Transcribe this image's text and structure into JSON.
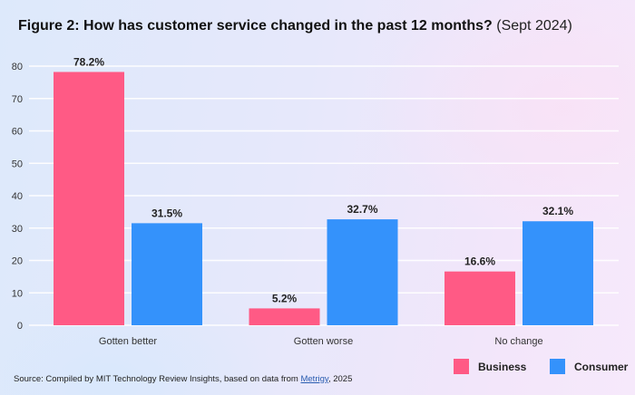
{
  "title": {
    "main": "Figure 2: How has customer service changed in the past 12 months?",
    "sub": "(Sept 2024)"
  },
  "colors": {
    "business": "#ff5a85",
    "consumer": "#3492fb"
  },
  "legend": [
    {
      "name": "Business",
      "color": "#ff5a85"
    },
    {
      "name": "Consumer",
      "color": "#3492fb"
    }
  ],
  "source": {
    "prefix": "Source: Compiled by MIT Technology Review Insights, based on data from ",
    "link_text": "Metrigy",
    "suffix": ", 2025"
  },
  "chart_data": {
    "type": "bar",
    "title": "Figure 2: How has customer service changed in the past 12 months? (Sept 2024)",
    "xlabel": "",
    "ylabel": "",
    "categories": [
      "Gotten better",
      "Gotten worse",
      "No change"
    ],
    "series": [
      {
        "name": "Business",
        "values": [
          78.2,
          5.2,
          16.6
        ],
        "labels": [
          "78.2%",
          "5.2%",
          "16.6%"
        ]
      },
      {
        "name": "Consumer",
        "values": [
          31.5,
          32.7,
          32.1
        ],
        "labels": [
          "31.5%",
          "32.7%",
          "32.1%"
        ]
      }
    ],
    "ylim": [
      0,
      80
    ],
    "yticks": [
      0,
      10,
      20,
      30,
      40,
      50,
      60,
      70,
      80
    ],
    "grid": true,
    "legend_position": "bottom-right"
  }
}
